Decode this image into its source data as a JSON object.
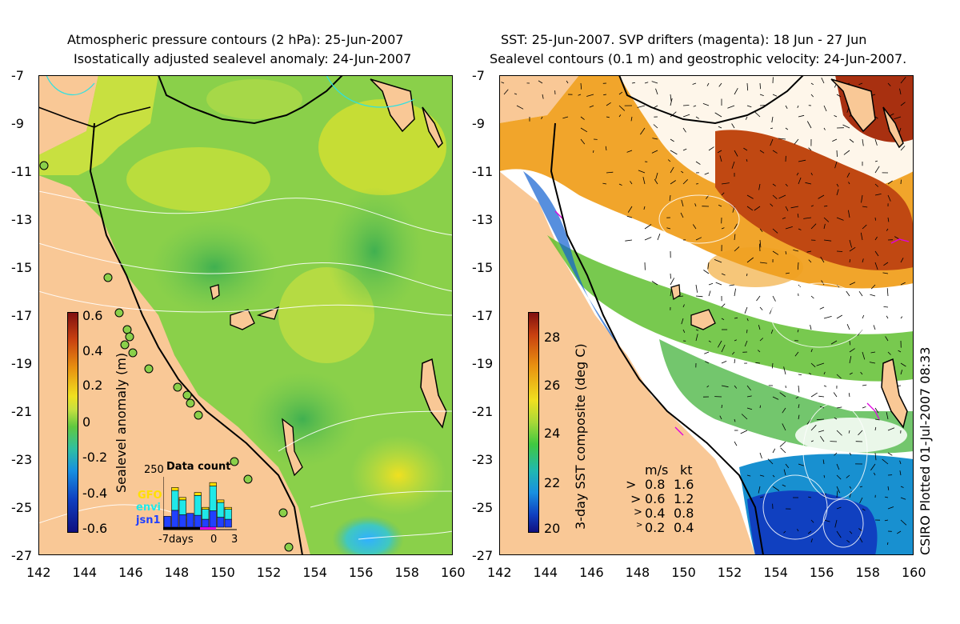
{
  "left_panel": {
    "title_line1": "Atmospheric pressure contours (2 hPa): 25-Jun-2007",
    "title_line2": "Isostatically adjusted sealevel anomaly: 24-Jun-2007",
    "colorbar_label": "Sealevel anomaly (m)",
    "colorbar_ticks": [
      "0.6",
      "0.4",
      "0.2",
      "0",
      "-0.2",
      "-0.4",
      "-0.6"
    ],
    "data_count_title": "Data count",
    "data_count_max": "250",
    "satellites": [
      {
        "name": "GFO",
        "color": "#ffe000"
      },
      {
        "name": "envi",
        "color": "#20e8e8"
      },
      {
        "name": "jsn1",
        "color": "#2040ff"
      }
    ],
    "histogram_axis": {
      "left": "-7days",
      "mid": "0",
      "right": "3"
    },
    "histogram_bars": [
      {
        "total": 0.22,
        "gfo": 0.0,
        "envi": 0.0
      },
      {
        "total": 0.8,
        "gfo": 0.06,
        "envi": 0.4
      },
      {
        "total": 0.6,
        "gfo": 0.05,
        "envi": 0.3
      },
      {
        "total": 0.28,
        "gfo": 0.0,
        "envi": 0.0
      },
      {
        "total": 0.7,
        "gfo": 0.06,
        "envi": 0.4
      },
      {
        "total": 0.4,
        "gfo": 0.04,
        "envi": 0.2
      },
      {
        "total": 0.9,
        "gfo": 0.07,
        "envi": 0.5
      },
      {
        "total": 0.55,
        "gfo": 0.05,
        "envi": 0.3
      },
      {
        "total": 0.4,
        "gfo": 0.04,
        "envi": 0.2
      }
    ]
  },
  "right_panel": {
    "title_line1": "SST: 25-Jun-2007. SVP drifters (magenta): 18 Jun - 27 Jun",
    "title_line2": "Sealevel contours (0.1 m) and geostrophic velocity: 24-Jun-2007.",
    "colorbar_label": "3-day SST composite (deg C)",
    "colorbar_ticks": [
      "28",
      "26",
      "24",
      "22",
      "20"
    ],
    "velocity_legend": {
      "header": {
        "ms": "m/s",
        "kt": "kt"
      },
      "rows": [
        {
          "ms": "0.8",
          "kt": "1.6"
        },
        {
          "ms": "0.6",
          "kt": "1.2"
        },
        {
          "ms": "0.4",
          "kt": "0.8"
        },
        {
          "ms": "0.2",
          "kt": "0.4"
        }
      ]
    }
  },
  "axes": {
    "lat_labels": [
      "-7",
      "-9",
      "-11",
      "-13",
      "-15",
      "-17",
      "-19",
      "-21",
      "-23",
      "-25",
      "-27"
    ],
    "lon_labels": [
      "142",
      "144",
      "146",
      "148",
      "150",
      "152",
      "154",
      "156",
      "158",
      "160"
    ],
    "lat_range": [
      -27,
      -7
    ],
    "lon_range": [
      142,
      160
    ]
  },
  "footer": {
    "credit": "CSIRO Plotted 01-Jul-2007 08:33"
  },
  "colors": {
    "land": "#f9c896",
    "sla_mid": "#8ad04a",
    "sst_warm": "#b83c10"
  }
}
